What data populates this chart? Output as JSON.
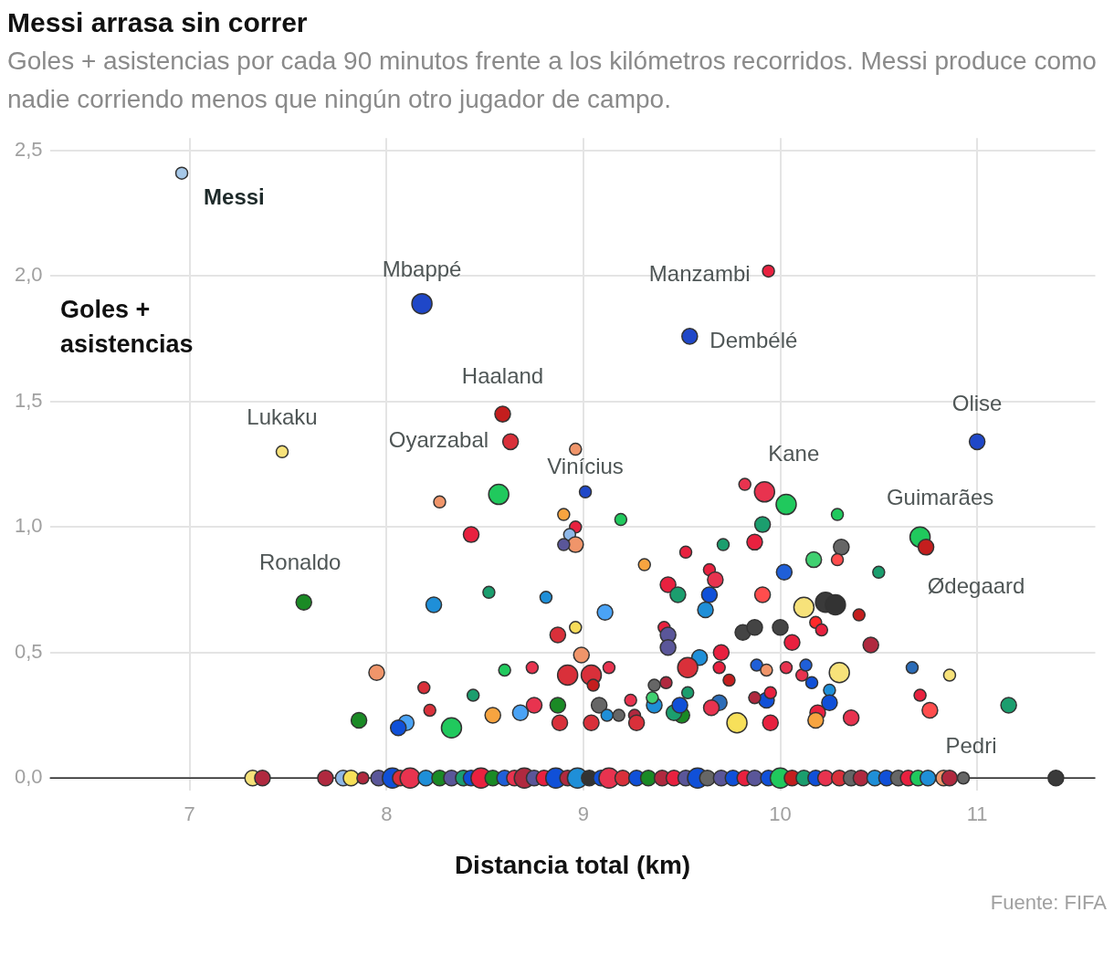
{
  "chart_data": {
    "type": "bubble",
    "title": "Messi arrasa sin correr",
    "subtitle": "Goles + asistencias por cada 90 minutos frente a los kilómetros recorridos. Messi produce como nadie corriendo menos que ningún otro jugador de campo.",
    "xlabel": "Distancia total (km)",
    "ylabel": "Goles + asistencias",
    "xlim": [
      6.29,
      11.6
    ],
    "ylim": [
      -0.05,
      2.55
    ],
    "xticks": [
      7,
      8,
      9,
      10,
      11
    ],
    "yticks": [
      {
        "value": 0,
        "label": "0,0"
      },
      {
        "value": 0.5,
        "label": "0,5"
      },
      {
        "value": 1,
        "label": "1,0"
      },
      {
        "value": 1.5,
        "label": "1,5"
      },
      {
        "value": 2,
        "label": "2,0"
      },
      {
        "value": 2.5,
        "label": "2,5"
      }
    ],
    "grid": true,
    "legend": false,
    "annotations": [
      {
        "text": "Messi",
        "x": 6.96,
        "y": 2.41
      },
      {
        "text": "Mbappé",
        "x": 8.18,
        "y": 1.89
      },
      {
        "text": "Manzambi",
        "x": 9.94,
        "y": 2.02
      },
      {
        "text": "Dembélé",
        "x": 9.54,
        "y": 1.76
      },
      {
        "text": "Haaland",
        "x": 8.59,
        "y": 1.45
      },
      {
        "text": "Oyarzabal",
        "x": 8.63,
        "y": 1.34
      },
      {
        "text": "Lukaku",
        "x": 7.47,
        "y": 1.3
      },
      {
        "text": "Olise",
        "x": 11.0,
        "y": 1.34
      },
      {
        "text": "Vinícius",
        "x": 9.01,
        "y": 1.14
      },
      {
        "text": "Kane",
        "x": 9.92,
        "y": 1.14
      },
      {
        "text": "Guimarães",
        "x": 10.71,
        "y": 0.96
      },
      {
        "text": "Ødegaard",
        "x": 10.74,
        "y": 0.92
      },
      {
        "text": "Ronaldo",
        "x": 7.58,
        "y": 0.7
      },
      {
        "text": "Pedri",
        "x": 10.83,
        "y": 0
      },
      "Fuente: FIFA"
    ],
    "series": [
      {
        "x": [
          6.96,
          8.18,
          9.94,
          9.54,
          8.59,
          8.63,
          7.47,
          11.0,
          9.01,
          9.92,
          10.71,
          10.74,
          7.58,
          10.83,
          8.27,
          8.57,
          8.43,
          8.96,
          8.9,
          8.96,
          8.93,
          8.96,
          8.9,
          9.19,
          8.52,
          8.24,
          8.81,
          9.11,
          8.96,
          8.87,
          7.95,
          8.19,
          8.44,
          8.6,
          8.74,
          8.33,
          8.22,
          8.1,
          8.06,
          7.86,
          8.54,
          8.68,
          8.75,
          8.87,
          8.88,
          8.99,
          9.04,
          8.92,
          9.13,
          9.05,
          9.04,
          9.18,
          9.08,
          9.26,
          9.27,
          9.31,
          9.52,
          9.43,
          9.48,
          9.71,
          9.82,
          9.87,
          9.91,
          10.03,
          10.29,
          10.31,
          10.17,
          10.29,
          10.02,
          10.5,
          9.64,
          9.67,
          9.64,
          9.62,
          9.91,
          10.12,
          10.23,
          10.28,
          10.4,
          9.81,
          9.87,
          10.0,
          10.06,
          10.18,
          10.21,
          10.46,
          9.41,
          9.43,
          9.43,
          9.59,
          9.7,
          9.53,
          9.42,
          9.36,
          9.69,
          9.74,
          9.88,
          9.93,
          10.03,
          10.11,
          10.13,
          10.16,
          10.3,
          10.25,
          10.67,
          10.86,
          10.71,
          10.76,
          11.16,
          10.36,
          10.25,
          10.19,
          10.18,
          9.95,
          9.78,
          9.93,
          9.95,
          9.87,
          9.69,
          9.65,
          9.5,
          9.46,
          9.53,
          9.49,
          9.36,
          9.35,
          9.24,
          9.12,
          7.32,
          7.37,
          7.69,
          7.78,
          7.82,
          7.88,
          7.96,
          8.03,
          8.07,
          8.12,
          8.2,
          8.27,
          8.33,
          8.39,
          8.43,
          8.48,
          8.54,
          8.6,
          8.65,
          8.7,
          8.75,
          8.8,
          8.86,
          8.92,
          8.97,
          9.03,
          9.09,
          9.13,
          9.2,
          9.27,
          9.33,
          9.4,
          9.46,
          9.52,
          9.58,
          9.63,
          9.7,
          9.76,
          9.82,
          9.87,
          9.94,
          10.0,
          10.06,
          10.12,
          10.18,
          10.23,
          10.3,
          10.36,
          10.41,
          10.48,
          10.54,
          10.6,
          10.65,
          10.7,
          10.75,
          10.86,
          10.93,
          11.4
        ],
        "values": [
          2.41,
          1.89,
          2.02,
          1.76,
          1.45,
          1.34,
          1.3,
          1.34,
          1.14,
          1.14,
          0.96,
          0.92,
          0.7,
          0,
          1.1,
          1.13,
          0.97,
          1.31,
          1.05,
          1.0,
          0.97,
          0.93,
          0.93,
          1.03,
          0.74,
          0.69,
          0.72,
          0.66,
          0.6,
          0.57,
          0.42,
          0.36,
          0.33,
          0.43,
          0.44,
          0.2,
          0.27,
          0.22,
          0.2,
          0.23,
          0.25,
          0.26,
          0.29,
          0.29,
          0.22,
          0.49,
          0.41,
          0.41,
          0.44,
          0.37,
          0.22,
          0.25,
          0.29,
          0.25,
          0.22,
          0.85,
          0.9,
          0.77,
          0.73,
          0.93,
          1.17,
          0.94,
          1.01,
          1.09,
          1.05,
          0.92,
          0.87,
          0.87,
          0.82,
          0.82,
          0.83,
          0.79,
          0.73,
          0.67,
          0.73,
          0.68,
          0.7,
          0.69,
          0.65,
          0.58,
          0.6,
          0.6,
          0.54,
          0.62,
          0.59,
          0.53,
          0.6,
          0.57,
          0.52,
          0.48,
          0.5,
          0.44,
          0.38,
          0.37,
          0.44,
          0.39,
          0.45,
          0.43,
          0.44,
          0.41,
          0.45,
          0.38,
          0.42,
          0.35,
          0.44,
          0.41,
          0.33,
          0.27,
          0.29,
          0.24,
          0.3,
          0.26,
          0.23,
          0.22,
          0.22,
          0.31,
          0.34,
          0.32,
          0.3,
          0.28,
          0.25,
          0.26,
          0.34,
          0.29,
          0.29,
          0.32,
          0.31,
          0.25,
          0,
          0,
          0,
          0,
          0,
          0,
          0,
          0,
          0,
          0,
          0,
          0,
          0,
          0,
          0,
          0,
          0,
          0,
          0,
          0,
          0,
          0,
          0,
          0,
          0,
          0,
          0,
          0,
          0,
          0,
          0,
          0,
          0,
          0,
          0,
          0,
          0,
          0,
          0,
          0,
          0,
          0,
          0,
          0,
          0,
          0,
          0,
          0,
          0,
          0,
          0,
          0,
          0,
          0,
          0,
          0,
          0,
          0
        ],
        "sizes": [
          0.35,
          1,
          0.35,
          0.6,
          0.6,
          0.6,
          0.35,
          0.6,
          0.35,
          1,
          1,
          0.6,
          0.6,
          0.6,
          0.35,
          1,
          0.6,
          0.35,
          0.35,
          0.35,
          0.35,
          0.6,
          0.35,
          0.35,
          0.35,
          0.6,
          0.35,
          0.6,
          0.35,
          0.6,
          0.6,
          0.35,
          0.35,
          0.35,
          0.35,
          1,
          0.35,
          0.6,
          0.6,
          0.6,
          0.6,
          0.6,
          0.6,
          0.6,
          0.6,
          0.6,
          1,
          1,
          0.35,
          0.35,
          0.6,
          0.35,
          0.6,
          0.35,
          0.6,
          0.35,
          0.35,
          0.6,
          0.6,
          0.35,
          0.35,
          0.6,
          0.6,
          1,
          0.35,
          0.6,
          0.6,
          0.35,
          0.6,
          0.35,
          0.35,
          0.6,
          0.6,
          0.6,
          0.6,
          1,
          1,
          1,
          0.35,
          0.6,
          0.6,
          0.6,
          0.6,
          0.35,
          0.35,
          0.6,
          0.35,
          0.6,
          0.6,
          0.6,
          0.6,
          1,
          0.35,
          0.35,
          0.35,
          0.35,
          0.35,
          0.35,
          0.35,
          0.35,
          0.35,
          0.35,
          1,
          0.35,
          0.35,
          0.35,
          0.35,
          0.6,
          0.6,
          0.6,
          0.6,
          0.6,
          0.6,
          0.6,
          1,
          0.6,
          0.35,
          0.35,
          0.6,
          0.6,
          0.6,
          0.6,
          0.35,
          0.6,
          0.6,
          0.35,
          0.35,
          0.35,
          0.6,
          0.6,
          0.6,
          0.6,
          0.6,
          0.35,
          0.6,
          1,
          0.6,
          1,
          0.6,
          0.6,
          0.6,
          0.6,
          0.6,
          1,
          0.6,
          0.6,
          0.6,
          1,
          0.6,
          0.6,
          1,
          0.6,
          1,
          0.6,
          0.6,
          1,
          0.6,
          0.6,
          0.6,
          0.6,
          0.6,
          0.6,
          1,
          0.6,
          0.6,
          0.6,
          0.6,
          0.6,
          0.6,
          1,
          0.6,
          0.6,
          0.6,
          0.6,
          0.6,
          0.6,
          0.6,
          0.6,
          0.6,
          0.6,
          0.6,
          0.6,
          0.6,
          0.6,
          0.35,
          0.6
        ],
        "colors": [
          "#a6c8e8",
          "#1f47c8",
          "#e8213f",
          "#1f47c8",
          "#c41e1e",
          "#d9303a",
          "#f7e27a",
          "#1f47c8",
          "#1f47c8",
          "#e8334f",
          "#20c95d",
          "#c41e1e",
          "#1a8a25",
          "#f0956a",
          "#f0956a",
          "#20c95d",
          "#e8213f",
          "#f0956a",
          "#f7a440",
          "#e8213f",
          "#8fb8e8",
          "#f0956a",
          "#5a5699",
          "#20c95d",
          "#1b9e6e",
          "#1f8fd8",
          "#1f8fd8",
          "#4aa3f5",
          "#f7dc5a",
          "#d9303a",
          "#f0956a",
          "#d9303a",
          "#1b9e6e",
          "#20c95d",
          "#e8334f",
          "#20c95d",
          "#d9303a",
          "#4aa3f5",
          "#1050d8",
          "#1a8a25",
          "#f7a440",
          "#4aa3f5",
          "#e8334f",
          "#1a8a25",
          "#d9303a",
          "#f0956a",
          "#d9303a",
          "#d9303a",
          "#e8334f",
          "#c41e1e",
          "#d9303a",
          "#666666",
          "#666666",
          "#b0293f",
          "#d9303a",
          "#f7a440",
          "#e8213f",
          "#e8213f",
          "#1b9e6e",
          "#1b9e6e",
          "#e8334f",
          "#e8213f",
          "#1b9e6e",
          "#20c95d",
          "#20c95d",
          "#666666",
          "#40d070",
          "#ff4d4d",
          "#1f5fd8",
          "#1b9e6e",
          "#e8213f",
          "#e8334f",
          "#1050d8",
          "#1f8fd8",
          "#ff4d4d",
          "#f7e27a",
          "#3a3a3a",
          "#333333",
          "#c41e1e",
          "#444444",
          "#444444",
          "#444444",
          "#e8213f",
          "#ff2a2a",
          "#e8213f",
          "#b0293f",
          "#e8213f",
          "#5a5699",
          "#5a5699",
          "#1f8fd8",
          "#e8213f",
          "#d9303a",
          "#b0293f",
          "#666666",
          "#e8213f",
          "#c41e1e",
          "#1f5fd8",
          "#f0956a",
          "#e8334f",
          "#e8334f",
          "#1f5fd8",
          "#1050d8",
          "#f7e27a",
          "#1f8fd8",
          "#2b6cb8",
          "#f7e27a",
          "#e8213f",
          "#ff4d4d",
          "#1b9e6e",
          "#e8334f",
          "#1050d8",
          "#e8213f",
          "#f7a440",
          "#e8213f",
          "#f7e05a",
          "#1050d8",
          "#e8213f",
          "#b0293f",
          "#2b6cb8",
          "#e8334f",
          "#1a8a25",
          "#1b9e6e",
          "#1b9e6e",
          "#1050d8",
          "#1f8fd8",
          "#40d070",
          "#e8334f",
          "#1f8fd8",
          "#f7e27a",
          "#b0293f",
          "#b0293f",
          "#8fb8e8",
          "#f7e05a",
          "#b0293f",
          "#5a5699",
          "#1050d8",
          "#d9303a",
          "#e8334f",
          "#1f8fd8",
          "#1a8a25",
          "#5a5699",
          "#1b9e6e",
          "#1050d8",
          "#e8213f",
          "#1a8a25",
          "#1f5fd8",
          "#e8334f",
          "#b0293f",
          "#5a5699",
          "#e8213f",
          "#1050d8",
          "#b0293f",
          "#1f8fd8",
          "#333333",
          "#1050d8",
          "#e8334f",
          "#d9303a",
          "#1050d8",
          "#1a8a25",
          "#b0293f",
          "#e8213f",
          "#5a5699",
          "#1050d8",
          "#666666",
          "#5a5699",
          "#1050d8",
          "#e8213f",
          "#5a5699",
          "#1050d8",
          "#20c95d",
          "#c41e1e",
          "#1b9e6e",
          "#1050d8",
          "#e8334f",
          "#d9303a",
          "#666666",
          "#b0293f",
          "#1f8fd8",
          "#1050d8",
          "#666666",
          "#e8213f",
          "#20c95d",
          "#1f8fd8",
          "#b0293f",
          "#666666",
          "#3a3a3a"
        ]
      }
    ]
  }
}
